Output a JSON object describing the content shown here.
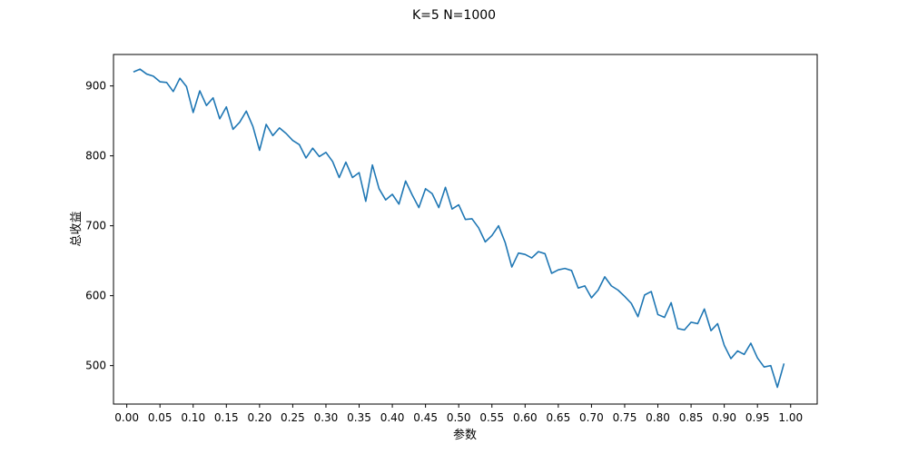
{
  "chart_data": {
    "type": "line",
    "title": "K=5 N=1000",
    "xlabel": "参数",
    "ylabel": "总收益",
    "xlim": [
      -0.02,
      1.04
    ],
    "ylim": [
      445,
      945
    ],
    "xticks": [
      0.0,
      0.05,
      0.1,
      0.15,
      0.2,
      0.25,
      0.3,
      0.35,
      0.4,
      0.45,
      0.5,
      0.55,
      0.6,
      0.65,
      0.7,
      0.75,
      0.8,
      0.85,
      0.9,
      0.95,
      1.0
    ],
    "xtick_labels": [
      "0.00",
      "0.05",
      "0.10",
      "0.15",
      "0.20",
      "0.25",
      "0.30",
      "0.35",
      "0.40",
      "0.45",
      "0.50",
      "0.55",
      "0.60",
      "0.65",
      "0.70",
      "0.75",
      "0.80",
      "0.85",
      "0.90",
      "0.95",
      "1.00"
    ],
    "yticks": [
      500,
      600,
      700,
      800,
      900
    ],
    "ytick_labels": [
      "500",
      "600",
      "700",
      "800",
      "900"
    ],
    "grid": false,
    "line_color": "#1f77b4",
    "series": [
      {
        "x": [
          0.01,
          0.02,
          0.03,
          0.04,
          0.05,
          0.06,
          0.07,
          0.08,
          0.09,
          0.1,
          0.11,
          0.12,
          0.13,
          0.14,
          0.15,
          0.16,
          0.17,
          0.18,
          0.19,
          0.2,
          0.21,
          0.22,
          0.23,
          0.24,
          0.25,
          0.26,
          0.27,
          0.28,
          0.29,
          0.3,
          0.31,
          0.32,
          0.33,
          0.34,
          0.35,
          0.36,
          0.37,
          0.38,
          0.39,
          0.4,
          0.41,
          0.42,
          0.43,
          0.44,
          0.45,
          0.46,
          0.47,
          0.48,
          0.49,
          0.5,
          0.51,
          0.52,
          0.53,
          0.54,
          0.55,
          0.56,
          0.57,
          0.58,
          0.59,
          0.6,
          0.61,
          0.62,
          0.63,
          0.64,
          0.65,
          0.66,
          0.67,
          0.68,
          0.69,
          0.7,
          0.71,
          0.72,
          0.73,
          0.74,
          0.75,
          0.76,
          0.77,
          0.78,
          0.79,
          0.8,
          0.81,
          0.82,
          0.83,
          0.84,
          0.85,
          0.86,
          0.87,
          0.88,
          0.89,
          0.9,
          0.91,
          0.92,
          0.93,
          0.94,
          0.95,
          0.96,
          0.97,
          0.98,
          0.99
        ],
        "y": [
          920,
          924,
          917,
          914,
          906,
          905,
          892,
          911,
          899,
          862,
          893,
          872,
          883,
          853,
          870,
          838,
          848,
          864,
          842,
          808,
          845,
          829,
          840,
          832,
          822,
          816,
          797,
          811,
          799,
          805,
          792,
          769,
          791,
          769,
          776,
          735,
          787,
          753,
          737,
          745,
          731,
          764,
          744,
          726,
          753,
          746,
          726,
          755,
          724,
          730,
          709,
          710,
          697,
          677,
          686,
          700,
          676,
          641,
          661,
          659,
          654,
          663,
          660,
          632,
          637,
          639,
          636,
          611,
          614,
          597,
          608,
          627,
          614,
          608,
          599,
          589,
          570,
          601,
          606,
          573,
          569,
          590,
          553,
          551,
          562,
          560,
          581,
          550,
          560,
          529,
          510,
          521,
          516,
          532,
          511,
          498,
          500,
          469,
          503
        ]
      }
    ]
  }
}
